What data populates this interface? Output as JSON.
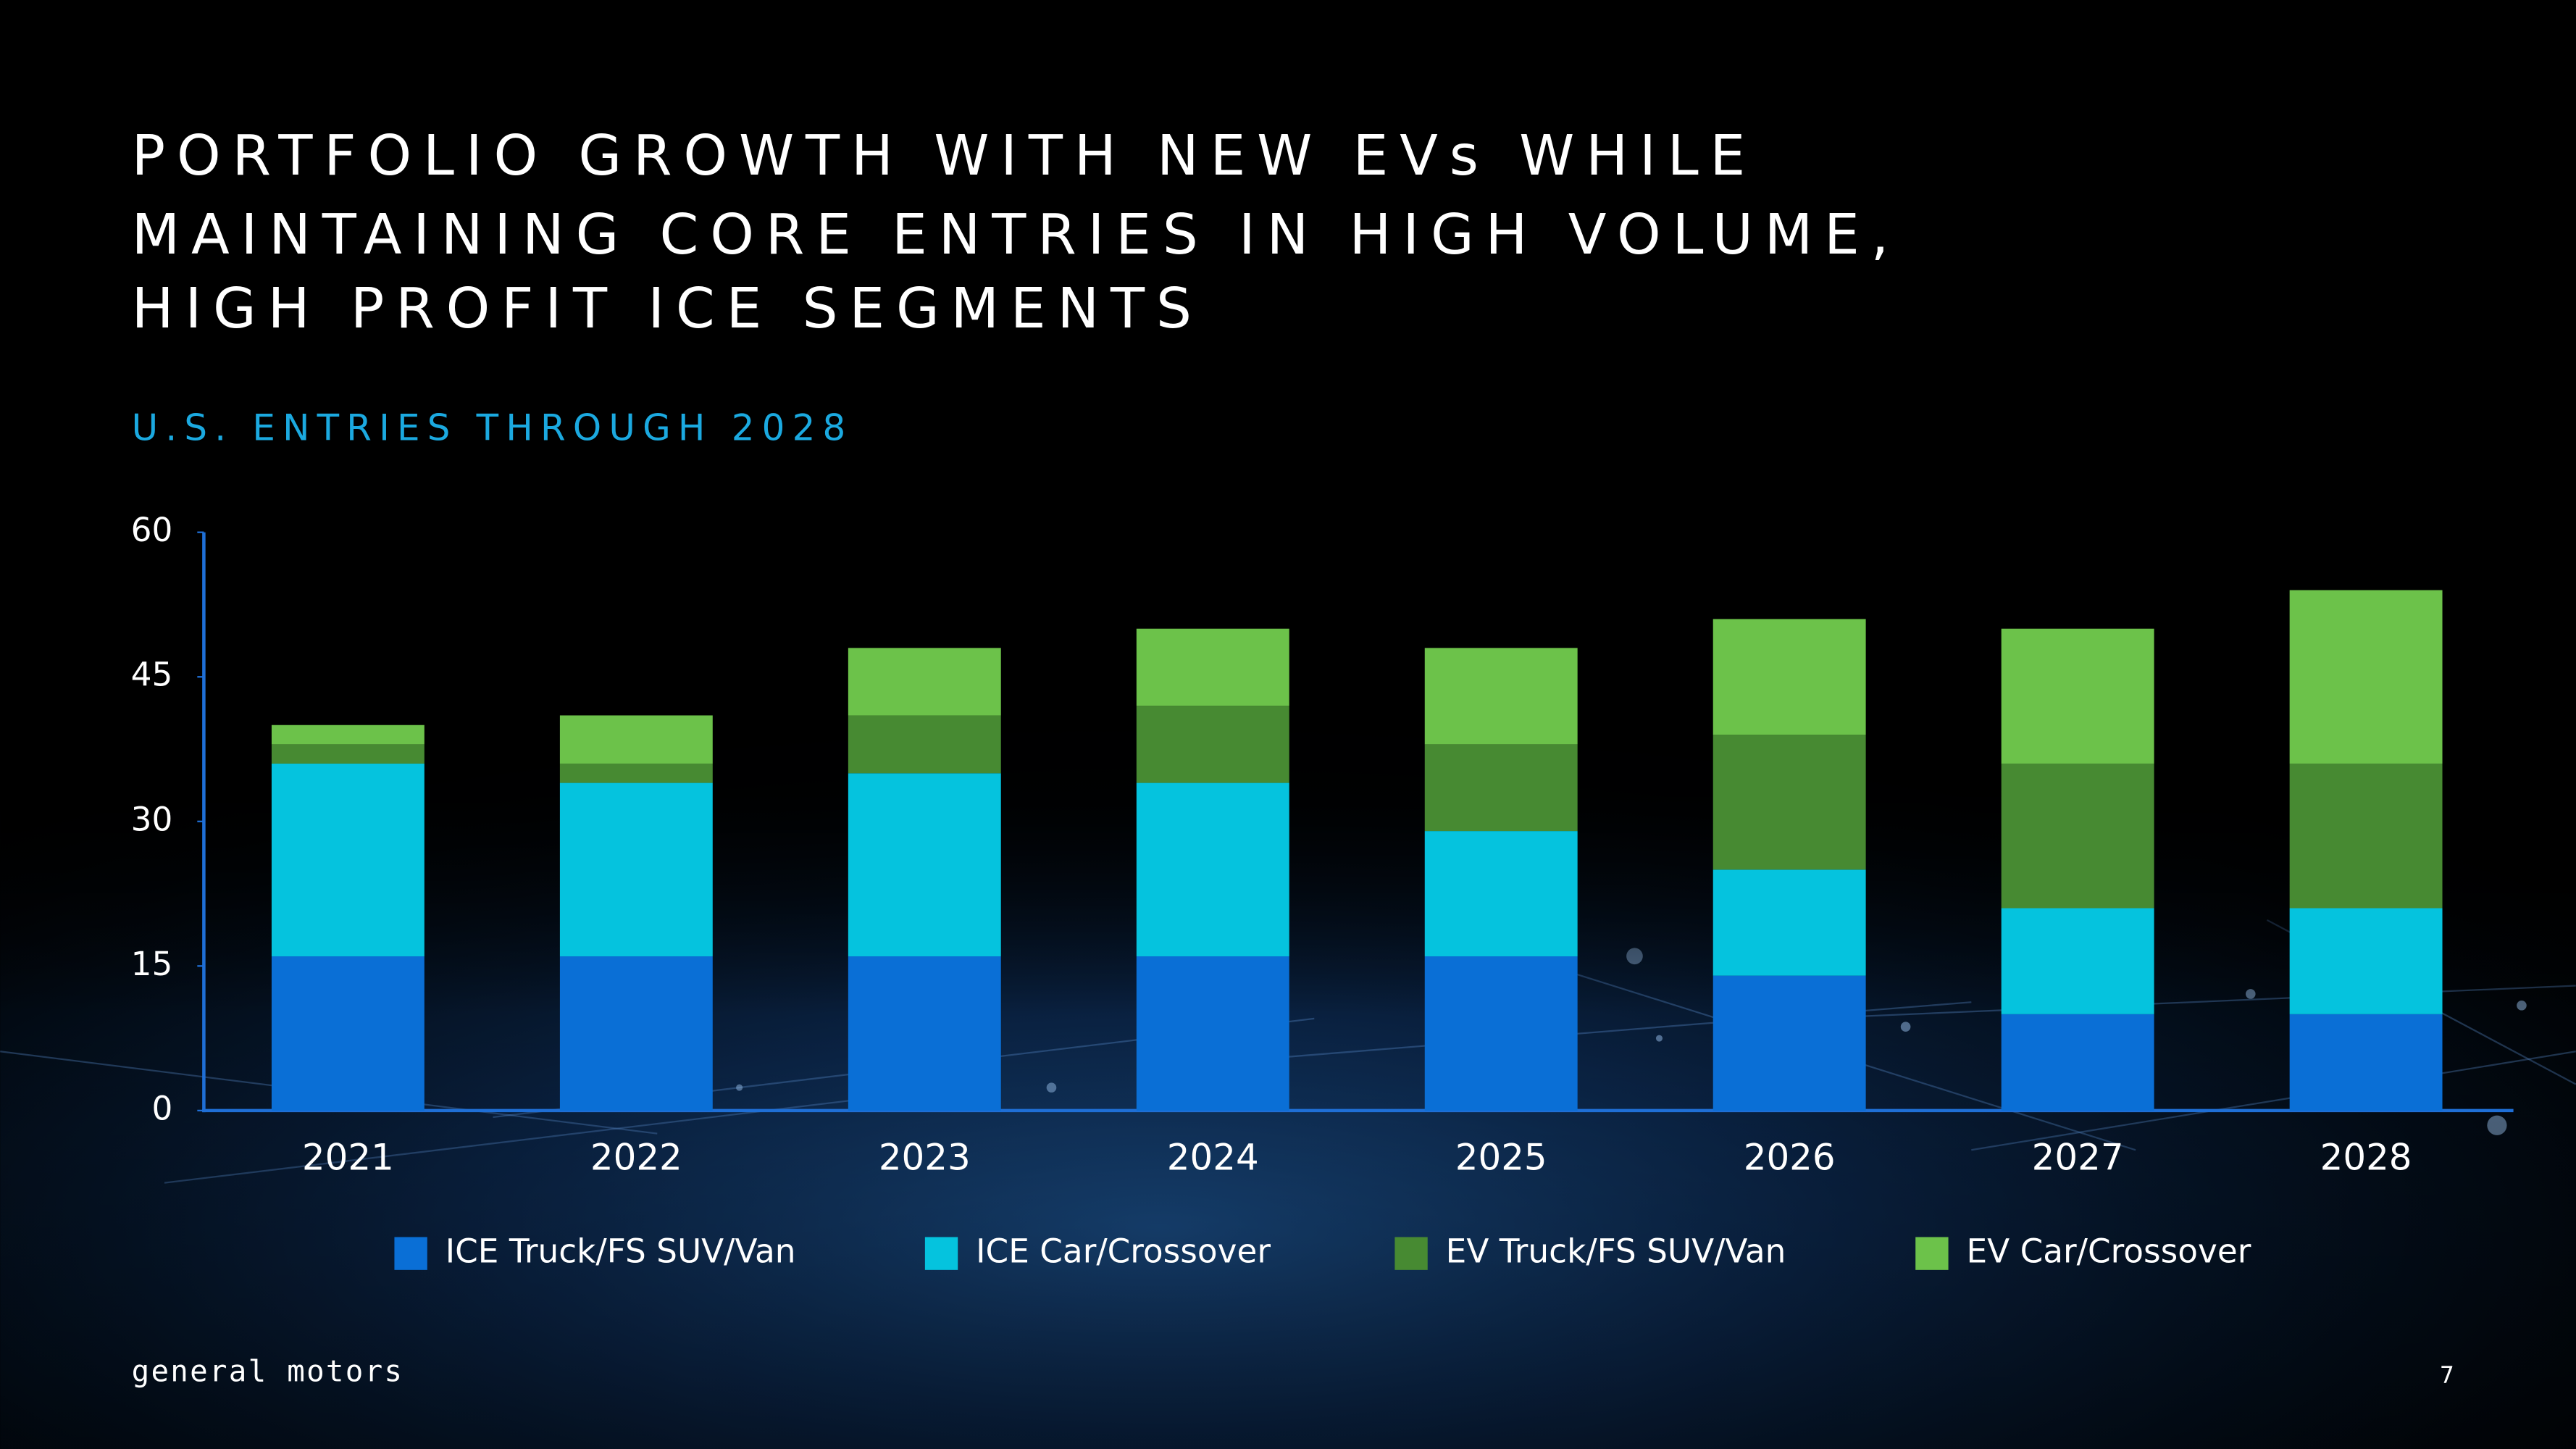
{
  "chart_data": {
    "type": "stacked-bar",
    "title": [
      "PORTFOLIO GROWTH WITH NEW EVs WHILE",
      "MAINTAINING CORE ENTRIES IN HIGH VOLUME,",
      "HIGH PROFIT ICE SEGMENTS"
    ],
    "subtitle": "U.S. ENTRIES THROUGH 2028",
    "categories": [
      "2021",
      "2022",
      "2023",
      "2024",
      "2025",
      "2026",
      "2027",
      "2028"
    ],
    "series": [
      {
        "name": "ICE Truck/FS SUV/Van",
        "color": "#0a6fd6",
        "values": [
          16,
          16,
          16,
          16,
          16,
          14,
          10,
          10
        ]
      },
      {
        "name": "ICE Car/Crossover",
        "color": "#05c3de",
        "values": [
          20,
          18,
          19,
          18,
          13,
          11,
          11,
          11
        ]
      },
      {
        "name": "EV Truck/FS SUV/Van",
        "color": "#478a32",
        "values": [
          2,
          2,
          6,
          8,
          9,
          14,
          15,
          15
        ]
      },
      {
        "name": "EV Car/Crossover",
        "color": "#6cc24a",
        "values": [
          2,
          5,
          7,
          8,
          10,
          12,
          14,
          18
        ]
      }
    ],
    "ylim": [
      0,
      60
    ],
    "yticks": [
      0,
      15,
      30,
      45,
      60
    ],
    "grid": false,
    "legend": "bottom"
  },
  "footer": {
    "brand": "general motors",
    "page": "7"
  }
}
